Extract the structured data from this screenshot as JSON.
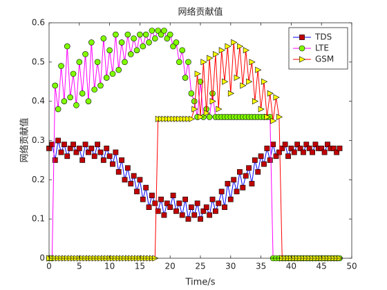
{
  "chart_data": {
    "type": "line",
    "title": "网络贡献值",
    "xlabel": "Time/s",
    "ylabel": "网络贡献值",
    "xlim": [
      0,
      50
    ],
    "ylim": [
      0,
      0.6
    ],
    "xticks": [
      0,
      5,
      10,
      15,
      20,
      25,
      30,
      35,
      40,
      45,
      50
    ],
    "yticks": [
      0,
      0.1,
      0.2,
      0.3,
      0.4,
      0.5,
      0.6
    ],
    "legend": "upper right",
    "x": [
      0,
      0.5,
      1,
      1.5,
      2,
      2.5,
      3,
      3.5,
      4,
      4.5,
      5,
      5.5,
      6,
      6.5,
      7,
      7.5,
      8,
      8.5,
      9,
      9.5,
      10,
      10.5,
      11,
      11.5,
      12,
      12.5,
      13,
      13.5,
      14,
      14.5,
      15,
      15.5,
      16,
      16.5,
      17,
      17.5,
      18,
      18.5,
      19,
      19.5,
      20,
      20.5,
      21,
      21.5,
      22,
      22.5,
      23,
      23.5,
      24,
      24.5,
      25,
      25.5,
      26,
      26.5,
      27,
      27.5,
      28,
      28.5,
      29,
      29.5,
      30,
      30.5,
      31,
      31.5,
      32,
      32.5,
      33,
      33.5,
      34,
      34.5,
      35,
      35.5,
      36,
      36.5,
      37,
      37.5,
      38,
      38.5,
      39,
      39.5,
      40,
      40.5,
      41,
      41.5,
      42,
      42.5,
      43,
      43.5,
      44,
      44.5,
      45,
      45.5,
      46,
      46.5,
      47,
      47.5,
      48
    ],
    "series": [
      {
        "name": "TDS",
        "color": "#0000ff",
        "marker": "square",
        "marker_color": "#c00000",
        "values": [
          0.28,
          0.29,
          0.25,
          0.3,
          0.27,
          0.29,
          0.26,
          0.28,
          0.29,
          0.27,
          0.28,
          0.25,
          0.29,
          0.27,
          0.28,
          0.26,
          0.29,
          0.27,
          0.25,
          0.28,
          0.26,
          0.24,
          0.27,
          0.22,
          0.25,
          0.2,
          0.23,
          0.19,
          0.21,
          0.17,
          0.2,
          0.15,
          0.18,
          0.13,
          0.16,
          0.14,
          0.12,
          0.15,
          0.11,
          0.14,
          0.13,
          0.16,
          0.12,
          0.14,
          0.11,
          0.15,
          0.1,
          0.13,
          0.11,
          0.14,
          0.1,
          0.12,
          0.13,
          0.11,
          0.15,
          0.12,
          0.14,
          0.17,
          0.13,
          0.19,
          0.15,
          0.2,
          0.17,
          0.22,
          0.18,
          0.21,
          0.23,
          0.19,
          0.25,
          0.22,
          0.26,
          0.24,
          0.28,
          0.25,
          0.29,
          0.26,
          0.27,
          0.28,
          0.29,
          0.26,
          0.28,
          0.27,
          0.29,
          0.28,
          0.27,
          0.29,
          0.28,
          0.27,
          0.29,
          0.28,
          0.28,
          0.27,
          0.29,
          0.28,
          0.28,
          0.27,
          0.28
        ]
      },
      {
        "name": "LTE",
        "color": "#ff00ff",
        "marker": "circle",
        "marker_color": "#80ff00",
        "values": [
          0,
          0,
          0.44,
          0.38,
          0.49,
          0.4,
          0.54,
          0.41,
          0.47,
          0.39,
          0.5,
          0.42,
          0.52,
          0.4,
          0.55,
          0.43,
          0.5,
          0.44,
          0.56,
          0.46,
          0.53,
          0.47,
          0.57,
          0.48,
          0.55,
          0.5,
          0.57,
          0.52,
          0.56,
          0.53,
          0.57,
          0.54,
          0.57,
          0.55,
          0.58,
          0.56,
          0.58,
          0.57,
          0.58,
          0.56,
          0.57,
          0.54,
          0.55,
          0.5,
          0.53,
          0.46,
          0.5,
          0.42,
          0.4,
          0.36,
          0.45,
          0.36,
          0.38,
          0.36,
          0.42,
          0.36,
          0.36,
          0.36,
          0.36,
          0.36,
          0.36,
          0.36,
          0.36,
          0.36,
          0.36,
          0.36,
          0.36,
          0.36,
          0.36,
          0.36,
          0.36,
          0.36,
          0.36,
          0.36,
          0,
          0,
          0,
          0,
          0,
          0,
          0,
          0,
          0,
          0,
          0,
          0,
          0,
          0,
          0,
          0,
          0,
          0,
          0,
          0,
          0,
          0,
          0
        ]
      },
      {
        "name": "GSM",
        "color": "#ff0000",
        "marker": "triangle-right",
        "marker_color": "#ffff00",
        "values": [
          0,
          0,
          0,
          0,
          0,
          0,
          0,
          0,
          0,
          0,
          0,
          0,
          0,
          0,
          0,
          0,
          0,
          0,
          0,
          0,
          0,
          0,
          0,
          0,
          0,
          0,
          0,
          0,
          0,
          0,
          0,
          0,
          0,
          0,
          0,
          0,
          0.355,
          0.355,
          0.355,
          0.355,
          0.355,
          0.355,
          0.355,
          0.355,
          0.355,
          0.355,
          0.355,
          0.355,
          0.38,
          0.47,
          0.36,
          0.5,
          0.37,
          0.51,
          0.4,
          0.52,
          0.38,
          0.53,
          0.45,
          0.54,
          0.42,
          0.55,
          0.46,
          0.54,
          0.44,
          0.53,
          0.45,
          0.5,
          0.4,
          0.48,
          0.38,
          0.45,
          0.36,
          0.42,
          0.35,
          0.41,
          0.36,
          0,
          0,
          0,
          0,
          0,
          0,
          0,
          0,
          0,
          0,
          0,
          0,
          0,
          0,
          0,
          0,
          0,
          0,
          0,
          0
        ]
      }
    ]
  }
}
